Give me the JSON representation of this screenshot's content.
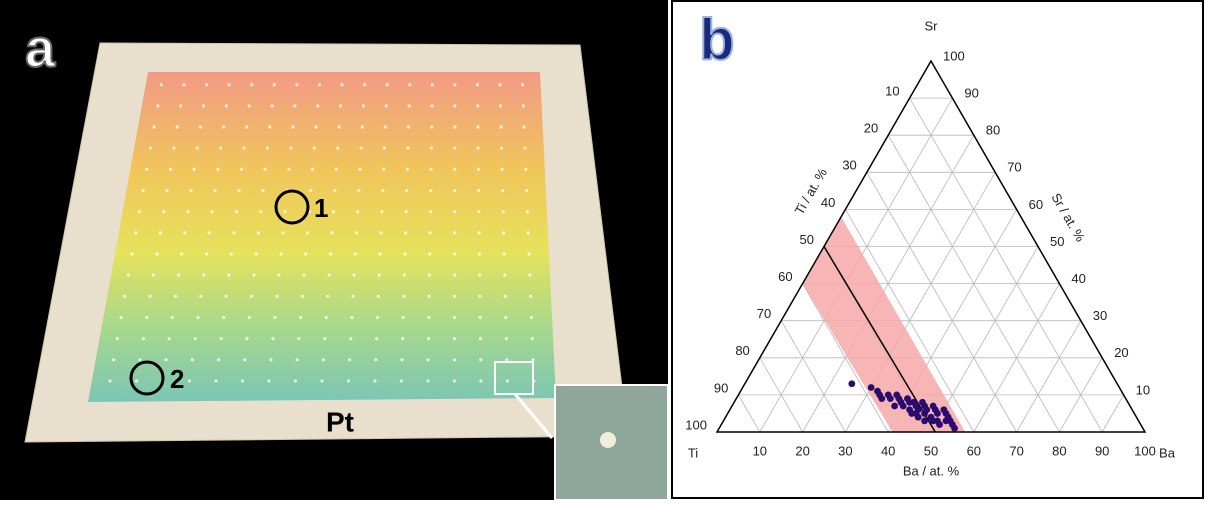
{
  "panel_a": {
    "label": "a",
    "spots": [
      "1",
      "2"
    ],
    "substrate": "Pt"
  },
  "chart_data": {
    "type": "ternary",
    "panel_label": "b",
    "corners": {
      "top": "Sr",
      "left": "Ti",
      "right": "Ba"
    },
    "axis_titles": {
      "ba": "Ba / at. %",
      "ti": "Ti / at. %",
      "sr": "Sr / at. %"
    },
    "ba_ticks": [
      10,
      20,
      30,
      40,
      50,
      60,
      70,
      80,
      90,
      100
    ],
    "ti_ticks": [
      10,
      20,
      30,
      40,
      50,
      60,
      70,
      80,
      90,
      100
    ],
    "sr_ticks": [
      10,
      20,
      30,
      40,
      50,
      60,
      70,
      80,
      90,
      100
    ],
    "band": {
      "ba": [
        0,
        0,
        58,
        41
      ],
      "sr": [
        40,
        58,
        0,
        0
      ],
      "color": "#f7a8a8"
    },
    "line": {
      "ba": [
        0,
        51
      ],
      "sr": [
        50,
        0
      ]
    },
    "points": {
      "color": "#2a0a6e",
      "ba": [
        25,
        30,
        32,
        33,
        35,
        34,
        36,
        37,
        38,
        39,
        40,
        41,
        40,
        42,
        43,
        44,
        45,
        44,
        46,
        47,
        48,
        46,
        49,
        50,
        48,
        51,
        52,
        50,
        53,
        54,
        47,
        45,
        43,
        49,
        51,
        52,
        55,
        42,
        38,
        44
      ],
      "sr": [
        13,
        12,
        11,
        10,
        10,
        9,
        9,
        10,
        9,
        8,
        9,
        8,
        7,
        8,
        7,
        8,
        7,
        6,
        6,
        7,
        6,
        5,
        5,
        6,
        4,
        5,
        4,
        3,
        3,
        2,
        3,
        4,
        5,
        3,
        2,
        3,
        1,
        6,
        7,
        5
      ]
    }
  }
}
